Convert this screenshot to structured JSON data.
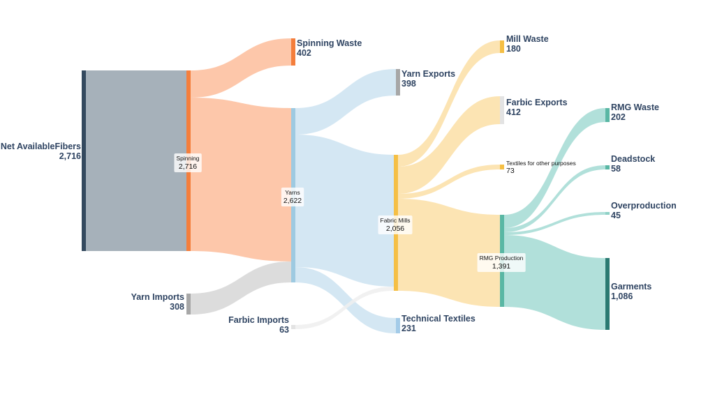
{
  "chart_data": {
    "type": "sankey",
    "title": "",
    "nodes": [
      {
        "id": "net",
        "name": "Net AvailableFibers",
        "value": "2,716",
        "color": "#34495e"
      },
      {
        "id": "spin",
        "name": "Spinning",
        "value": "2,716",
        "color": "#f47e3c"
      },
      {
        "id": "swaste",
        "name": "Spinning Waste",
        "value": "402",
        "color": "#f47e3c"
      },
      {
        "id": "yimp",
        "name": "Yarn Imports",
        "value": "308",
        "color": "#a7a7a7"
      },
      {
        "id": "yarns",
        "name": "Yarns",
        "value": "2,622",
        "color": "#9ecae1"
      },
      {
        "id": "yexp",
        "name": "Yarn Exports",
        "value": "398",
        "color": "#a7a7a7"
      },
      {
        "id": "fimp",
        "name": "Farbic Imports",
        "value": "63",
        "color": "#e3e3e3"
      },
      {
        "id": "mills",
        "name": "Fabric Mills",
        "value": "2,056",
        "color": "#f5bf45"
      },
      {
        "id": "tech",
        "name": "Technical Textiles",
        "value": "231",
        "color": "#a3cbe8"
      },
      {
        "id": "mwaste",
        "name": "Mill Waste",
        "value": "180",
        "color": "#f5bf45"
      },
      {
        "id": "fexp",
        "name": "Farbic Exports",
        "value": "412",
        "color": "#e3e3e3"
      },
      {
        "id": "tother",
        "name": "Textiles for other purposes",
        "value": "73",
        "color": "#f5bf45"
      },
      {
        "id": "rmg",
        "name": "RMG Production",
        "value": "1,391",
        "color": "#59b7a4"
      },
      {
        "id": "rwaste",
        "name": "RMG Waste",
        "value": "202",
        "color": "#59b7a4"
      },
      {
        "id": "dead",
        "name": "Deadstock",
        "value": "58",
        "color": "#59b7a4"
      },
      {
        "id": "over",
        "name": "Overproduction",
        "value": "45",
        "color": "#8fd1c6"
      },
      {
        "id": "garm",
        "name": "Garments",
        "value": "1,086",
        "color": "#2b7a72"
      }
    ],
    "links": [
      {
        "source": "net",
        "target": "spin",
        "value": 2716,
        "color": "#97a3ae"
      },
      {
        "source": "spin",
        "target": "swaste",
        "value": 402,
        "color": "#fdbd9b"
      },
      {
        "source": "spin",
        "target": "yarns",
        "value": 2314,
        "color": "#fdbd9b"
      },
      {
        "source": "yimp",
        "target": "yarns",
        "value": 308,
        "color": "#d6d6d6"
      },
      {
        "source": "yarns",
        "target": "yexp",
        "value": 398,
        "color": "#cde3f1"
      },
      {
        "source": "yarns",
        "target": "mills",
        "value": 1993,
        "color": "#cde3f1"
      },
      {
        "source": "yarns",
        "target": "tech",
        "value": 231,
        "color": "#cde3f1"
      },
      {
        "source": "fimp",
        "target": "mills",
        "value": 63,
        "color": "#efefef"
      },
      {
        "source": "mills",
        "target": "mwaste",
        "value": 180,
        "color": "#fbdfa6"
      },
      {
        "source": "mills",
        "target": "fexp",
        "value": 412,
        "color": "#fbdfa6"
      },
      {
        "source": "mills",
        "target": "tother",
        "value": 73,
        "color": "#fbdfa6"
      },
      {
        "source": "mills",
        "target": "rmg",
        "value": 1391,
        "color": "#fbdfa6"
      },
      {
        "source": "rmg",
        "target": "rwaste",
        "value": 202,
        "color": "#a3dbd3"
      },
      {
        "source": "rmg",
        "target": "dead",
        "value": 58,
        "color": "#a3dbd3"
      },
      {
        "source": "rmg",
        "target": "over",
        "value": 45,
        "color": "#a3dbd3"
      },
      {
        "source": "rmg",
        "target": "garm",
        "value": 1086,
        "color": "#a3dbd3"
      }
    ]
  }
}
